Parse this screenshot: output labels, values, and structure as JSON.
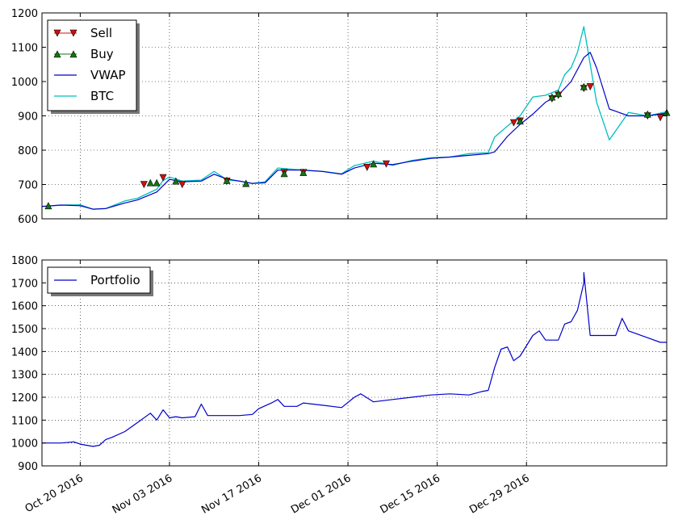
{
  "chart_data": [
    {
      "type": "line",
      "title": "",
      "xlabel": "",
      "ylabel": "",
      "ylim": [
        600,
        1200
      ],
      "yticks": [
        600,
        700,
        800,
        900,
        1000,
        1100,
        1200
      ],
      "xlim_days": [
        "2016-10-14",
        "2017-01-20"
      ],
      "grid": true,
      "legend_position": "top-left",
      "legend": [
        "Sell",
        "Buy",
        "VWAP",
        "BTC"
      ],
      "colors": {
        "sell": "#cc1111",
        "buy": "#117711",
        "vwap": "#0000cc",
        "btc": "#00bfbf"
      },
      "series": [
        {
          "name": "BTC",
          "x": [
            "2016-10-14",
            "2016-10-17",
            "2016-10-20",
            "2016-10-22",
            "2016-10-24",
            "2016-10-27",
            "2016-10-29",
            "2016-11-01",
            "2016-11-02",
            "2016-11-03",
            "2016-11-05",
            "2016-11-08",
            "2016-11-10",
            "2016-11-12",
            "2016-11-14",
            "2016-11-16",
            "2016-11-18",
            "2016-11-20",
            "2016-11-24",
            "2016-11-27",
            "2016-11-30",
            "2016-12-02",
            "2016-12-05",
            "2016-12-08",
            "2016-12-11",
            "2016-12-14",
            "2016-12-17",
            "2016-12-20",
            "2016-12-23",
            "2016-12-24",
            "2016-12-26",
            "2016-12-28",
            "2016-12-30",
            "2017-01-01",
            "2017-01-03",
            "2017-01-04",
            "2017-01-05",
            "2017-01-06",
            "2017-01-07",
            "2017-01-09",
            "2017-01-11",
            "2017-01-14",
            "2017-01-17",
            "2017-01-20"
          ],
          "y": [
            636,
            640,
            641,
            628,
            630,
            652,
            660,
            686,
            712,
            722,
            710,
            713,
            738,
            714,
            710,
            703,
            708,
            748,
            742,
            738,
            731,
            755,
            768,
            756,
            770,
            778,
            780,
            790,
            793,
            838,
            870,
            900,
            955,
            960,
            975,
            1020,
            1040,
            1085,
            1160,
            940,
            830,
            910,
            900,
            912
          ]
        },
        {
          "name": "VWAP",
          "x": [
            "2016-10-14",
            "2016-10-17",
            "2016-10-20",
            "2016-10-22",
            "2016-10-24",
            "2016-10-27",
            "2016-10-29",
            "2016-11-01",
            "2016-11-03",
            "2016-11-05",
            "2016-11-08",
            "2016-11-10",
            "2016-11-12",
            "2016-11-14",
            "2016-11-16",
            "2016-11-18",
            "2016-11-20",
            "2016-11-24",
            "2016-11-27",
            "2016-11-30",
            "2016-12-02",
            "2016-12-05",
            "2016-12-08",
            "2016-12-11",
            "2016-12-14",
            "2016-12-17",
            "2016-12-20",
            "2016-12-23",
            "2016-12-24",
            "2016-12-26",
            "2016-12-28",
            "2016-12-30",
            "2017-01-01",
            "2017-01-03",
            "2017-01-05",
            "2017-01-07",
            "2017-01-08",
            "2017-01-09",
            "2017-01-11",
            "2017-01-14",
            "2017-01-17",
            "2017-01-20"
          ],
          "y": [
            636,
            640,
            638,
            628,
            630,
            646,
            655,
            678,
            715,
            708,
            710,
            730,
            716,
            710,
            703,
            705,
            742,
            742,
            738,
            730,
            748,
            762,
            758,
            768,
            776,
            780,
            785,
            790,
            795,
            840,
            875,
            905,
            940,
            960,
            1000,
            1070,
            1085,
            1040,
            920,
            900,
            900,
            908
          ]
        },
        {
          "name": "Sell",
          "x": [
            "2016-10-30",
            "2016-11-02",
            "2016-11-05",
            "2016-11-12",
            "2016-11-21",
            "2016-11-24",
            "2016-12-04",
            "2016-12-07",
            "2016-12-27",
            "2016-12-28",
            "2017-01-02",
            "2017-01-03",
            "2017-01-07",
            "2017-01-08",
            "2017-01-17",
            "2017-01-19"
          ],
          "y": [
            700,
            720,
            700,
            710,
            735,
            735,
            750,
            760,
            880,
            885,
            950,
            960,
            980,
            985,
            900,
            895
          ]
        },
        {
          "name": "Buy",
          "x": [
            "2016-10-15",
            "2016-10-31",
            "2016-11-01",
            "2016-11-04",
            "2016-11-12",
            "2016-11-15",
            "2016-11-21",
            "2016-11-24",
            "2016-12-05",
            "2016-12-28",
            "2017-01-02",
            "2017-01-03",
            "2017-01-07",
            "2017-01-17",
            "2017-01-20"
          ],
          "y": [
            638,
            705,
            705,
            710,
            712,
            703,
            732,
            735,
            760,
            885,
            955,
            965,
            985,
            905,
            910
          ]
        }
      ]
    },
    {
      "type": "line",
      "title": "",
      "xlabel": "",
      "ylabel": "",
      "ylim": [
        900,
        1800
      ],
      "yticks": [
        900,
        1000,
        1100,
        1200,
        1300,
        1400,
        1500,
        1600,
        1700,
        1800
      ],
      "grid": true,
      "legend_position": "top-left",
      "legend": [
        "Portfolio"
      ],
      "colors": {
        "portfolio": "#0000cc"
      },
      "xtick_labels": [
        "Oct 20 2016",
        "Nov 03 2016",
        "Nov 17 2016",
        "Dec 01 2016",
        "Dec 15 2016",
        "Dec 29 2016"
      ],
      "xtick_dates": [
        "2016-10-20",
        "2016-11-03",
        "2016-11-17",
        "2016-12-01",
        "2016-12-15",
        "2016-12-29"
      ],
      "series": [
        {
          "name": "Portfolio",
          "x": [
            "2016-10-14",
            "2016-10-17",
            "2016-10-19",
            "2016-10-20",
            "2016-10-22",
            "2016-10-23",
            "2016-10-24",
            "2016-10-25",
            "2016-10-27",
            "2016-10-29",
            "2016-10-31",
            "2016-11-01",
            "2016-11-02",
            "2016-11-03",
            "2016-11-04",
            "2016-11-05",
            "2016-11-07",
            "2016-11-08",
            "2016-11-09",
            "2016-11-10",
            "2016-11-12",
            "2016-11-14",
            "2016-11-16",
            "2016-11-17",
            "2016-11-19",
            "2016-11-20",
            "2016-11-21",
            "2016-11-23",
            "2016-11-24",
            "2016-11-27",
            "2016-11-30",
            "2016-12-02",
            "2016-12-03",
            "2016-12-05",
            "2016-12-08",
            "2016-12-11",
            "2016-12-14",
            "2016-12-17",
            "2016-12-20",
            "2016-12-22",
            "2016-12-23",
            "2016-12-24",
            "2016-12-25",
            "2016-12-26",
            "2016-12-27",
            "2016-12-28",
            "2016-12-30",
            "2016-12-31",
            "2017-01-01",
            "2017-01-03",
            "2017-01-04",
            "2017-01-05",
            "2017-01-06",
            "2017-01-07",
            "2017-01-07",
            "2017-01-08",
            "2017-01-11",
            "2017-01-12",
            "2017-01-13",
            "2017-01-14",
            "2017-01-17",
            "2017-01-19",
            "2017-01-20"
          ],
          "y": [
            1000,
            1000,
            1005,
            995,
            985,
            990,
            1015,
            1025,
            1050,
            1090,
            1130,
            1100,
            1145,
            1110,
            1115,
            1110,
            1115,
            1170,
            1120,
            1120,
            1120,
            1120,
            1125,
            1150,
            1175,
            1190,
            1160,
            1160,
            1175,
            1165,
            1155,
            1200,
            1215,
            1180,
            1190,
            1200,
            1210,
            1215,
            1210,
            1225,
            1230,
            1330,
            1410,
            1420,
            1360,
            1380,
            1470,
            1490,
            1450,
            1450,
            1520,
            1530,
            1580,
            1700,
            1745,
            1470,
            1470,
            1470,
            1545,
            1490,
            1460,
            1440,
            1440
          ]
        }
      ]
    }
  ]
}
